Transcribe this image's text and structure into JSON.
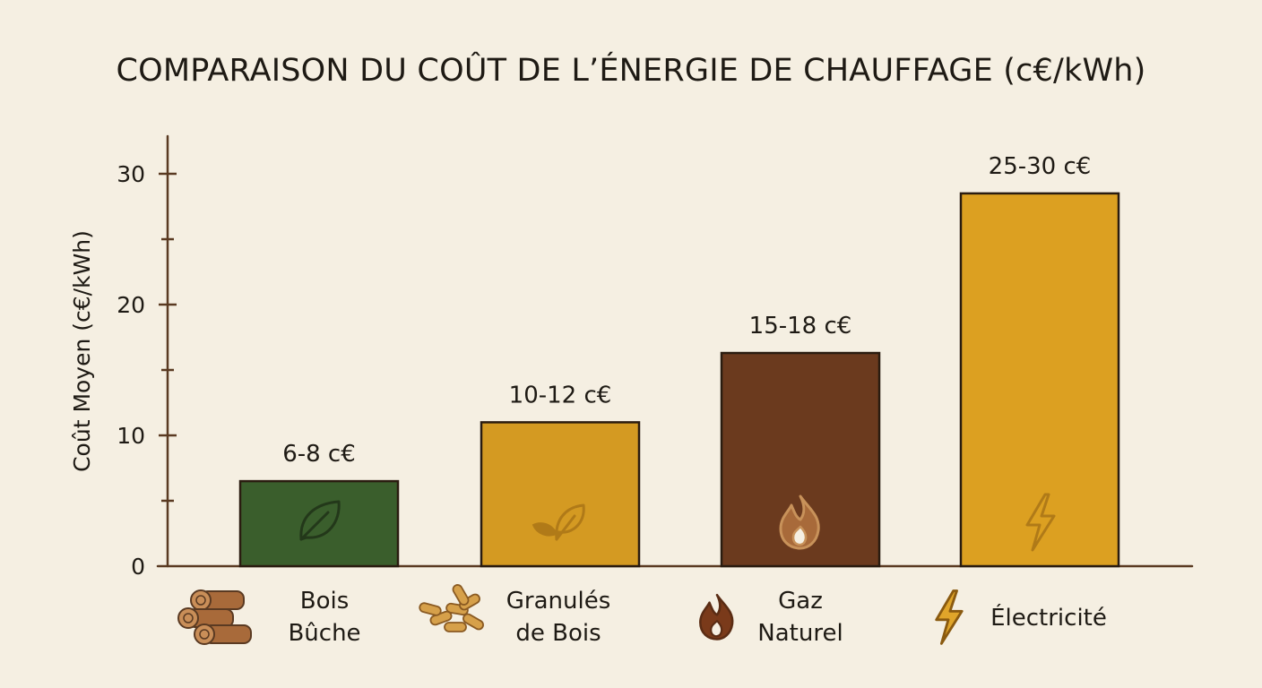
{
  "chart_data": {
    "type": "bar",
    "title": "COMPARAISON DU COÛT DE L’ÉNERGIE DE CHAUFFAGE (c€/kWh)",
    "ylabel": "Coût Moyen (c€/kWh)",
    "xlabel": "",
    "ylim": [
      0,
      33
    ],
    "yticks": [
      0,
      10,
      20,
      30
    ],
    "grid": false,
    "categories": [
      {
        "lines": [
          "Bois",
          "Bûche"
        ],
        "icon": "logs-icon"
      },
      {
        "lines": [
          "Granulés",
          "de Bois"
        ],
        "icon": "pellets-icon"
      },
      {
        "lines": [
          "Gaz",
          "Naturel"
        ],
        "icon": "flame-icon"
      },
      {
        "lines": [
          "Électricité"
        ],
        "icon": "lightning-icon"
      }
    ],
    "values": [
      6.5,
      11,
      16.3,
      28.5
    ],
    "value_labels": [
      "6-8 c€",
      "10-12 c€",
      "15-18 c€",
      "25-30 c€"
    ],
    "bar_icons": [
      "leaf-icon",
      "sprout-icon",
      "flame-icon",
      "lightning-icon"
    ],
    "colors": [
      "#3a5e2c",
      "#d49a22",
      "#6b3a1e",
      "#dca021"
    ],
    "axis_color": "#5a3a22"
  }
}
